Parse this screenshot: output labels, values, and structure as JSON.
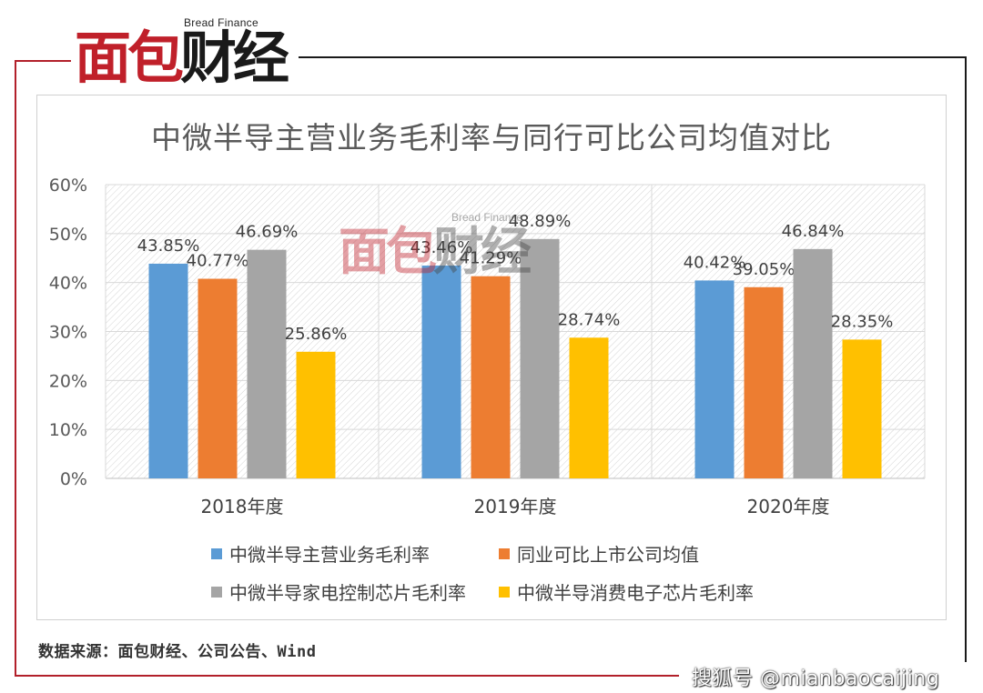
{
  "logo": {
    "brand_en": "Bread Finance",
    "chars": [
      "面",
      "包",
      "财",
      "经"
    ]
  },
  "watermark": {
    "brand_en": "Bread Finance",
    "chars": [
      "面",
      "包",
      "财",
      "经"
    ]
  },
  "chart_data": {
    "type": "bar",
    "title": "中微半导主营业务毛利率与同行可比公司均值对比",
    "categories": [
      "2018年度",
      "2019年度",
      "2020年度"
    ],
    "series": [
      {
        "name": "中微半导主营业务毛利率",
        "values": [
          43.85,
          43.46,
          40.42
        ],
        "color": "#5b9bd5"
      },
      {
        "name": "同业可比上市公司均值",
        "values": [
          40.77,
          41.29,
          39.05
        ],
        "color": "#ed7d31"
      },
      {
        "name": "中微半导家电控制芯片毛利率",
        "values": [
          46.69,
          48.89,
          46.84
        ],
        "color": "#a5a5a5"
      },
      {
        "name": "中微半导消费电子芯片毛利率",
        "values": [
          25.86,
          28.74,
          28.35
        ],
        "color": "#ffc000"
      }
    ],
    "data_labels": [
      [
        "43.85%",
        "43.46%",
        "40.42%"
      ],
      [
        "40.77%",
        "41.29%",
        "39.05%"
      ],
      [
        "46.69%",
        "48.89%",
        "46.84%"
      ],
      [
        "25.86%",
        "28.74%",
        "28.35%"
      ]
    ],
    "yticks": [
      "0%",
      "10%",
      "20%",
      "30%",
      "40%",
      "50%",
      "60%"
    ],
    "ylim": [
      0,
      60
    ],
    "xlabel": "",
    "ylabel": "",
    "grid": true,
    "legend_position": "bottom"
  },
  "source_note": "数据来源：面包财经、公司公告、Wind",
  "platform_mark": "搜狐号 @mianbaocaijing"
}
